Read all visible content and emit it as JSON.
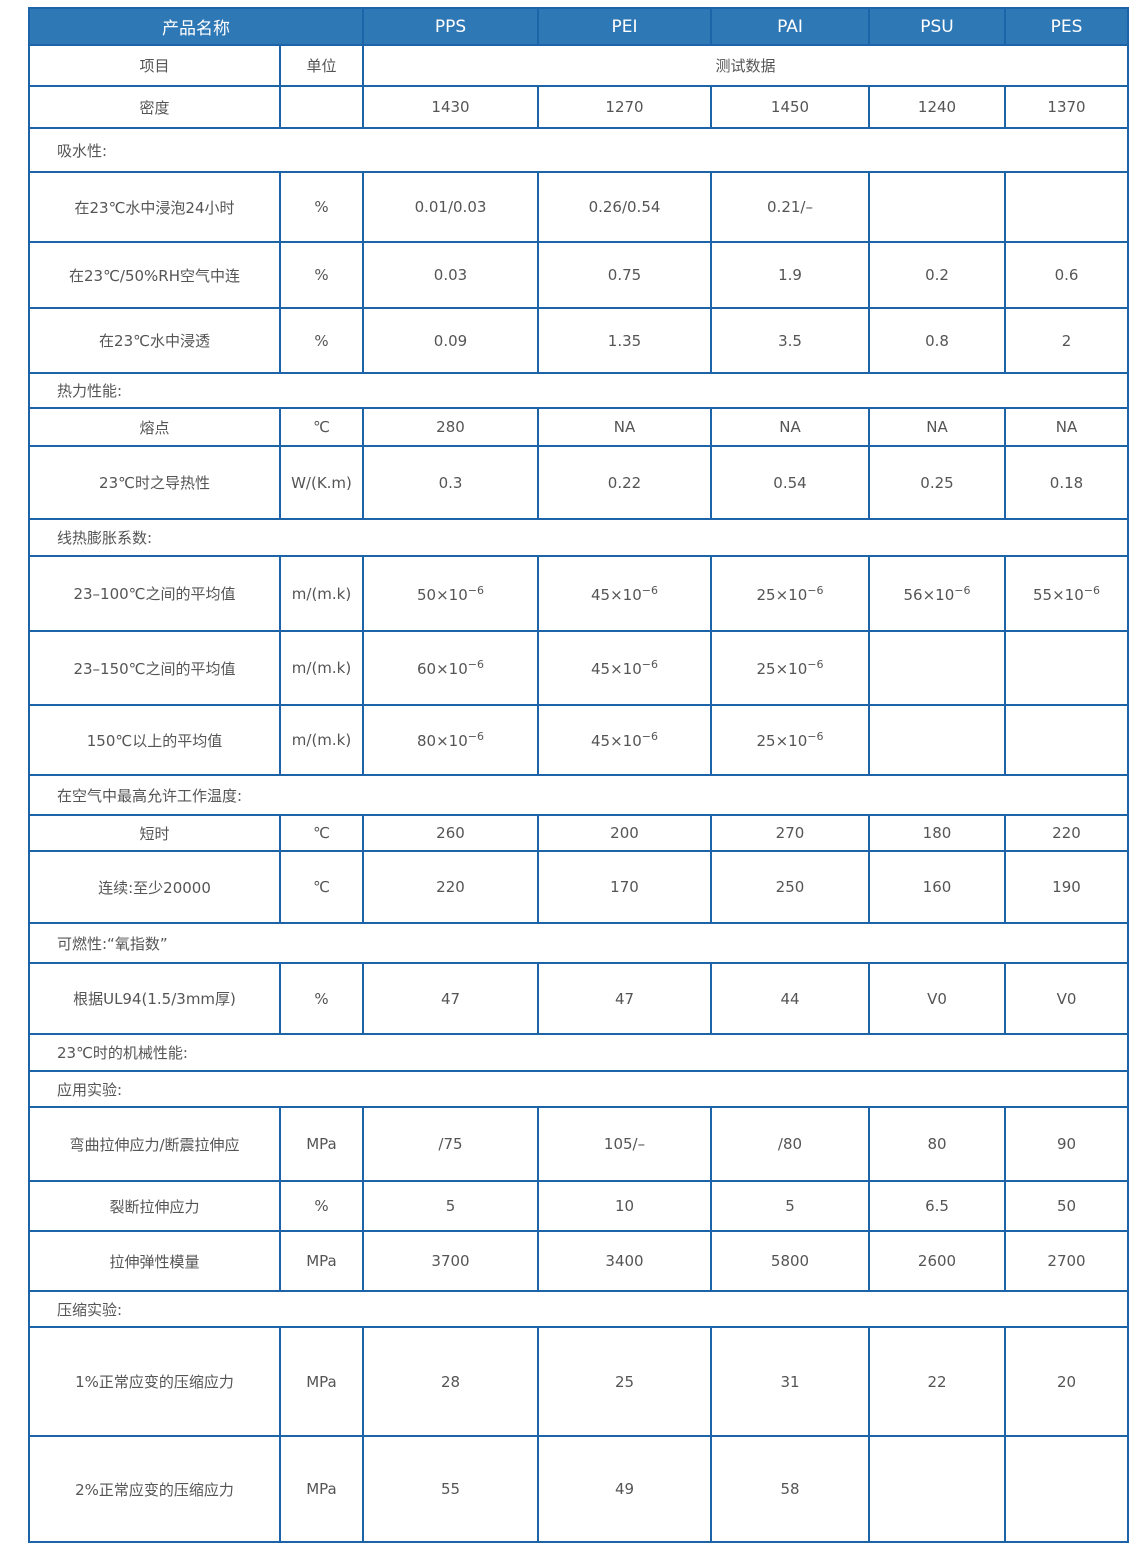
{
  "header": {
    "product_name_label": "产品名称",
    "materials": [
      "PPS",
      "PEI",
      "PAI",
      "PSU",
      "PES"
    ]
  },
  "subheader": {
    "item_label": "项目",
    "unit_label": "单位",
    "test_data_label": "测试数据"
  },
  "colors": {
    "header_bg": "#2f78b6",
    "border": "#1d63a8",
    "text": "#555555"
  },
  "rows": [
    {
      "type": "data",
      "label": "密度",
      "unit": "",
      "values": [
        "1430",
        "1270",
        "1450",
        "1240",
        "1370"
      ]
    },
    {
      "type": "section",
      "label": "吸水性:"
    },
    {
      "type": "data",
      "label": "在23℃水中浸泡24小时",
      "unit": "%",
      "values": [
        "0.01/0.03",
        "0.26/0.54",
        "0.21/–",
        "",
        ""
      ]
    },
    {
      "type": "data",
      "label": "在23℃/50%RH空气中连",
      "unit": "%",
      "values": [
        "0.03",
        "0.75",
        "1.9",
        "0.2",
        "0.6"
      ]
    },
    {
      "type": "data",
      "label": "在23℃水中浸透",
      "unit": "%",
      "values": [
        "0.09",
        "1.35",
        "3.5",
        "0.8",
        "2"
      ]
    },
    {
      "type": "section",
      "label": "热力性能:"
    },
    {
      "type": "data",
      "label": "熔点",
      "unit": "℃",
      "values": [
        "280",
        "NA",
        "NA",
        "NA",
        "NA"
      ]
    },
    {
      "type": "data",
      "label": "23℃时之导热性",
      "unit": "W/(K.m)",
      "values": [
        "0.3",
        "0.22",
        "0.54",
        "0.25",
        "0.18"
      ]
    },
    {
      "type": "section",
      "label": "线热膨胀系数:"
    },
    {
      "type": "data",
      "label": "23–100℃之间的平均值",
      "unit": "m/(m.k)",
      "values": [
        "50×10",
        "45×10",
        "25×10",
        "56×10",
        "55×10"
      ],
      "exponents": [
        "−6",
        "−6",
        "−6",
        "−6",
        "−6"
      ]
    },
    {
      "type": "data",
      "label": "23–150℃之间的平均值",
      "unit": "m/(m.k)",
      "values": [
        "60×10",
        "45×10",
        "25×10",
        "",
        ""
      ],
      "exponents": [
        "−6",
        "−6",
        "−6",
        "",
        ""
      ]
    },
    {
      "type": "data",
      "label": "150℃以上的平均值",
      "unit": "m/(m.k)",
      "values": [
        "80×10",
        "45×10",
        "25×10",
        "",
        ""
      ],
      "exponents": [
        "−6",
        "−6",
        "−6",
        "",
        ""
      ]
    },
    {
      "type": "section",
      "label": "在空气中最高允许工作温度:"
    },
    {
      "type": "data",
      "label": "短时",
      "unit": "℃",
      "values": [
        "260",
        "200",
        "270",
        "180",
        "220"
      ]
    },
    {
      "type": "data",
      "label": "连续:至少20000",
      "unit": "℃",
      "values": [
        "220",
        "170",
        "250",
        "160",
        "190"
      ]
    },
    {
      "type": "section",
      "label": "可燃性:“氧指数”"
    },
    {
      "type": "data",
      "label": "根据UL94(1.5/3mm厚)",
      "unit": "%",
      "values": [
        "47",
        "47",
        "44",
        "V0",
        "V0"
      ]
    },
    {
      "type": "section",
      "label": "23℃时的机械性能:"
    },
    {
      "type": "section",
      "label": "应用实验:"
    },
    {
      "type": "data",
      "label": "弯曲拉伸应力/断震拉伸应",
      "unit": "MPa",
      "values": [
        "/75",
        "105/–",
        "/80",
        "80",
        "90"
      ]
    },
    {
      "type": "data",
      "label": "裂断拉伸应力",
      "unit": "%",
      "values": [
        "5",
        "10",
        "5",
        "6.5",
        "50"
      ]
    },
    {
      "type": "data",
      "label": "拉伸弹性模量",
      "unit": "MPa",
      "values": [
        "3700",
        "3400",
        "5800",
        "2600",
        "2700"
      ]
    },
    {
      "type": "section",
      "label": "压缩实验:"
    },
    {
      "type": "data",
      "label": "1%正常应变的压缩应力",
      "unit": "MPa",
      "values": [
        "28",
        "25",
        "31",
        "22",
        "20"
      ]
    },
    {
      "type": "data",
      "label": "2%正常应变的压缩应力",
      "unit": "MPa",
      "values": [
        "55",
        "49",
        "58",
        "",
        ""
      ]
    }
  ]
}
